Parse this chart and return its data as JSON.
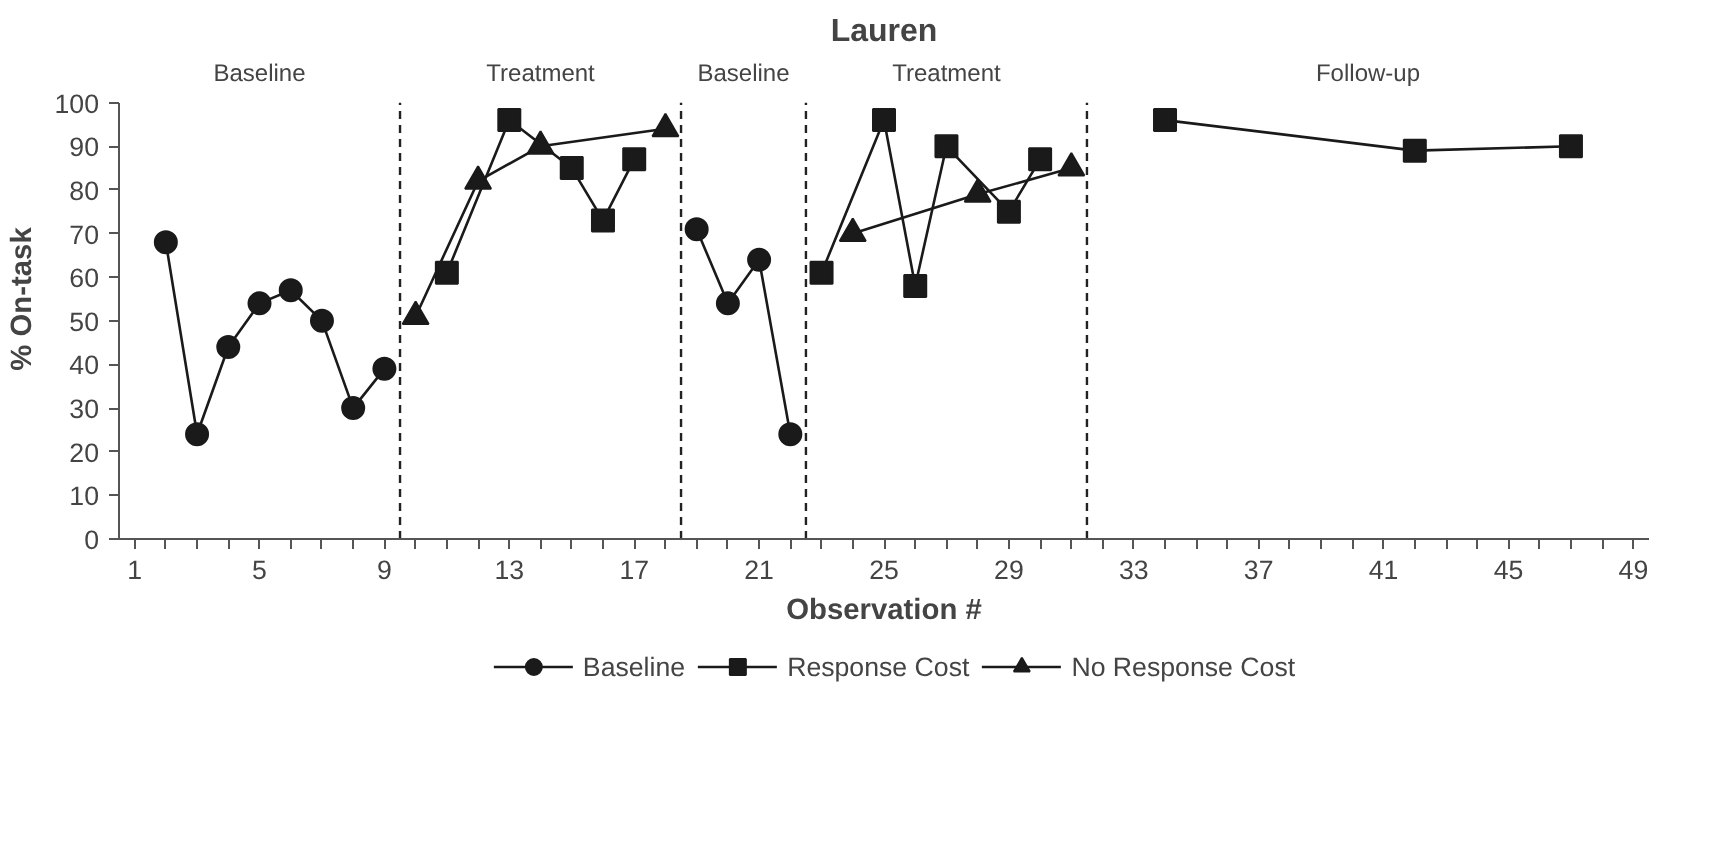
{
  "chart_data": {
    "type": "line",
    "title": "Lauren",
    "xlabel": "Observation #",
    "ylabel": "% On-task",
    "xlim": [
      0.5,
      49.5
    ],
    "ylim": [
      0,
      100
    ],
    "xticks": [
      1,
      {
        "value": 2,
        "label": null
      },
      {
        "value": 3,
        "label": null
      },
      {
        "value": 4,
        "label": null
      },
      5,
      {
        "value": 6,
        "label": null
      },
      {
        "value": 7,
        "label": null
      },
      {
        "value": 8,
        "label": null
      },
      9,
      {
        "value": 10,
        "label": null
      },
      {
        "value": 11,
        "label": null
      },
      {
        "value": 12,
        "label": null
      },
      13,
      {
        "value": 14,
        "label": null
      },
      {
        "value": 15,
        "label": null
      },
      {
        "value": 16,
        "label": null
      },
      17,
      {
        "value": 18,
        "label": null
      },
      {
        "value": 19,
        "label": null
      },
      {
        "value": 20,
        "label": null
      },
      21,
      {
        "value": 22,
        "label": null
      },
      {
        "value": 23,
        "label": null
      },
      {
        "value": 24,
        "label": null
      },
      25,
      {
        "value": 26,
        "label": null
      },
      {
        "value": 27,
        "label": null
      },
      {
        "value": 28,
        "label": null
      },
      29,
      {
        "value": 30,
        "label": null
      },
      {
        "value": 31,
        "label": null
      },
      {
        "value": 32,
        "label": null
      },
      33,
      {
        "value": 34,
        "label": null
      },
      {
        "value": 35,
        "label": null
      },
      {
        "value": 36,
        "label": null
      },
      37,
      {
        "value": 38,
        "label": null
      },
      {
        "value": 39,
        "label": null
      },
      {
        "value": 40,
        "label": null
      },
      41,
      {
        "value": 42,
        "label": null
      },
      {
        "value": 43,
        "label": null
      },
      {
        "value": 44,
        "label": null
      },
      45,
      {
        "value": 46,
        "label": null
      },
      {
        "value": 47,
        "label": null
      },
      {
        "value": 48,
        "label": null
      },
      49
    ],
    "yticks": [
      0,
      10,
      20,
      30,
      40,
      50,
      60,
      70,
      80,
      90,
      100
    ],
    "grid": false,
    "legend": "bottom",
    "series": [
      {
        "name": "Baseline",
        "color": "#1a1a1a",
        "marker": "circle",
        "x": [
          2,
          3,
          4,
          5,
          6,
          7,
          8,
          9,
          14,
          19,
          20,
          21,
          22
        ],
        "values": [
          68,
          24,
          44,
          54,
          57,
          50,
          30,
          39,
          null,
          71,
          54,
          64,
          24
        ]
      },
      {
        "name": "Response Cost",
        "color": "#1a1a1a",
        "marker": "square",
        "x": [
          11,
          13,
          15,
          16,
          17,
          20,
          23,
          25,
          26,
          27,
          29,
          30,
          32,
          34,
          42,
          47
        ],
        "values": [
          61,
          96,
          85,
          73,
          87,
          null,
          61,
          96,
          58,
          90,
          75,
          87,
          null,
          96,
          89,
          90
        ]
      },
      {
        "name": "No Response Cost",
        "color": "#1a1a1a",
        "marker": "triangle",
        "x": [
          10,
          12,
          14,
          18,
          21,
          24,
          28,
          31
        ],
        "values": [
          51,
          82,
          90,
          94,
          null,
          70,
          79,
          85
        ]
      }
    ],
    "ref_lines": [
      {
        "axis": "x",
        "value": 9.5,
        "line_style": "dashed"
      },
      {
        "axis": "x",
        "value": 18.5,
        "line_style": "dashed"
      },
      {
        "axis": "x",
        "value": 22.5,
        "line_style": "dashed"
      },
      {
        "axis": "x",
        "value": 31.5,
        "line_style": "dashed"
      }
    ],
    "annotations": [
      "Baseline",
      "Treatment",
      "Baseline",
      "Treatment",
      "Follow-up"
    ]
  }
}
